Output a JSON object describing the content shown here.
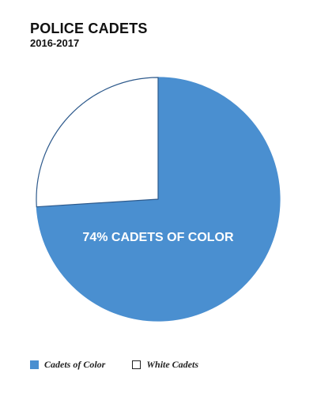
{
  "chart_data": {
    "type": "pie",
    "title": "POLICE CADETS",
    "subtitle": "2016-2017",
    "slices": [
      {
        "label": "Cadets of Color",
        "value": 74,
        "color": "#4a8fd0",
        "stroke": "#4a8fd0"
      },
      {
        "label": "White Cadets",
        "value": 26,
        "color": "#ffffff",
        "stroke": "#2e5a8c"
      }
    ],
    "annotation": "74% CADETS OF COLOR",
    "legend_position": "bottom-left"
  }
}
